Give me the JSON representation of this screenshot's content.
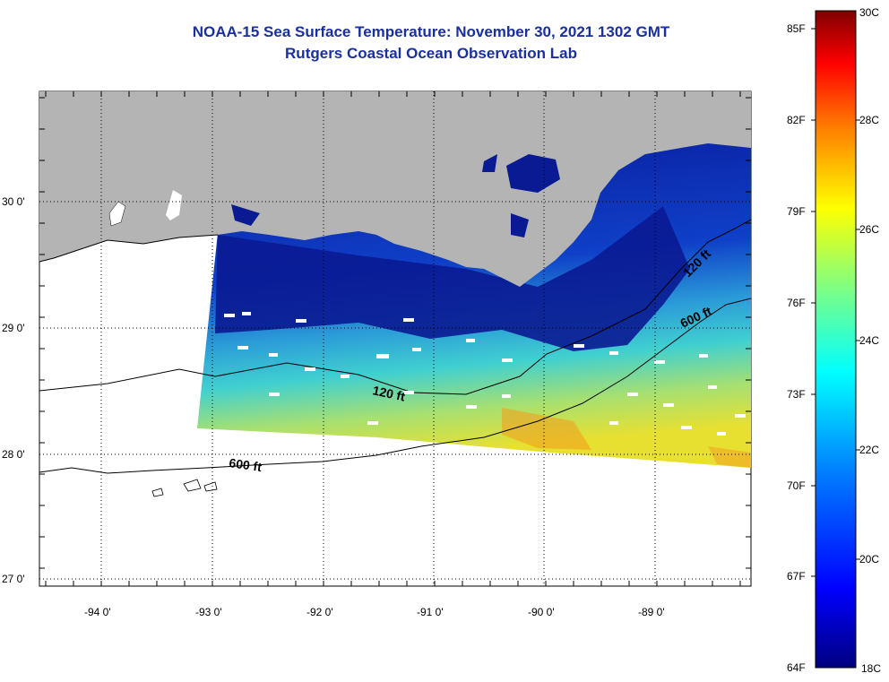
{
  "title": {
    "line1": "NOAA-15 Sea Surface Temperature:  November 30, 2021 1302 GMT",
    "line2": "Rutgers Coastal Ocean Observation Lab"
  },
  "map": {
    "lat_labels": [
      "30 0'",
      "29 0'",
      "28 0'",
      "27 0'"
    ],
    "lon_labels": [
      "-94 0'",
      "-93 0'",
      "-92 0'",
      "-91 0'",
      "-90 0'",
      "-89 0'"
    ],
    "contour_labels": [
      "120 ft",
      "600 ft",
      "120 ft",
      "600 ft"
    ]
  },
  "colorbar": {
    "fahrenheit_labels": [
      "85F",
      "82F",
      "79F",
      "76F",
      "73F",
      "70F",
      "67F",
      "64F"
    ],
    "celsius_labels": [
      "30C",
      "28C",
      "26C",
      "24C",
      "22C",
      "20C",
      "18C"
    ],
    "colors": [
      "#7f0000",
      "#ff0000",
      "#ff8000",
      "#ffff00",
      "#80ff80",
      "#00ffff",
      "#0080ff",
      "#0000ff",
      "#00007f"
    ]
  },
  "colors": {
    "land": "#b4b4b4",
    "ocean_blank": "#ffffff",
    "title": "#1a2fa0"
  }
}
